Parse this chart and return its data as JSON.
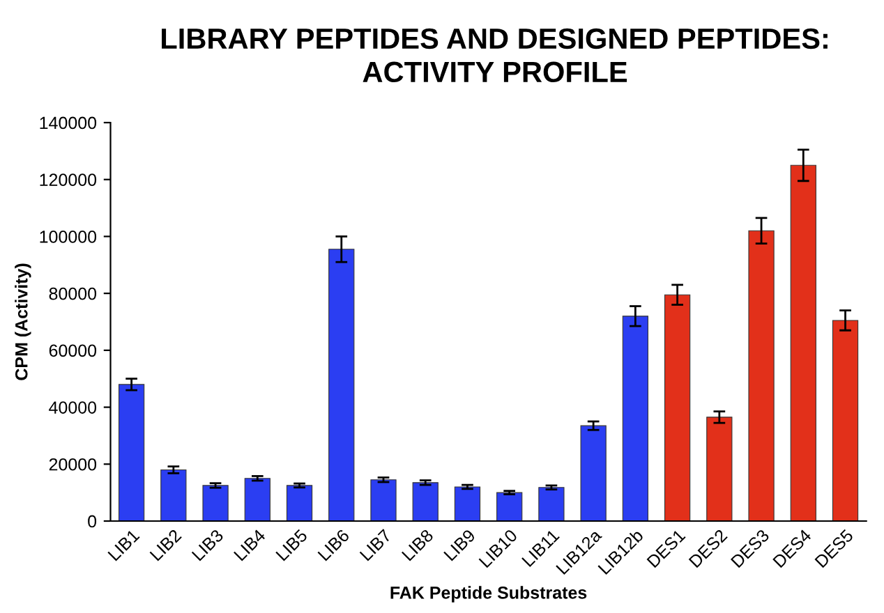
{
  "chart_data": {
    "type": "bar",
    "title": "LIBRARY PEPTIDES AND DESIGNED PEPTIDES:\nACTIVITY PROFILE",
    "xlabel": "FAK Peptide Substrates",
    "ylabel": "CPM (Activity)",
    "categories": [
      "LIB1",
      "LIB2",
      "LIB3",
      "LIB4",
      "LIB5",
      "LIB6",
      "LIB7",
      "LIB8",
      "LIB9",
      "LIB10",
      "LIB11",
      "LIB12a",
      "LIB12b",
      "DES1",
      "DES2",
      "DES3",
      "DES4",
      "DES5"
    ],
    "values": [
      48000,
      18000,
      12500,
      15000,
      12500,
      95500,
      14500,
      13500,
      12000,
      10000,
      11800,
      33500,
      72000,
      79500,
      36500,
      102000,
      125000,
      70500
    ],
    "errors": [
      2000,
      1200,
      800,
      800,
      700,
      4500,
      800,
      800,
      700,
      600,
      700,
      1500,
      3500,
      3500,
      2000,
      4500,
      5500,
      3500
    ],
    "colors": [
      "#2b3ef2",
      "#2b3ef2",
      "#2b3ef2",
      "#2b3ef2",
      "#2b3ef2",
      "#2b3ef2",
      "#2b3ef2",
      "#2b3ef2",
      "#2b3ef2",
      "#2b3ef2",
      "#2b3ef2",
      "#2b3ef2",
      "#2b3ef2",
      "#e2301a",
      "#e2301a",
      "#e2301a",
      "#e2301a",
      "#e2301a"
    ],
    "ylim": [
      0,
      140000
    ],
    "yticks": [
      0,
      20000,
      40000,
      60000,
      80000,
      100000,
      120000,
      140000
    ],
    "grid": false
  }
}
